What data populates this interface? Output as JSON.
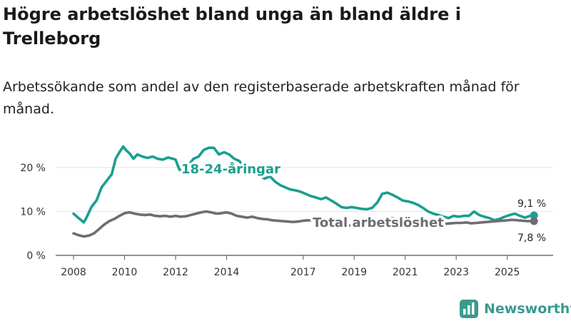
{
  "title": "Högre arbetslöshet bland unga än bland äldre i Trelleborg",
  "subtitle": "Arbetssökande som andel av den registerbaserade arbetskraften månad för månad.",
  "brand": {
    "name": "Newsworthy",
    "icon": "bar-chart-logo-icon"
  },
  "colors": {
    "youth": "#1a9e8f",
    "total": "#6f6c72",
    "axis": "#555555",
    "grid": "#e3e3e3",
    "brand": "#3a9a8f"
  },
  "chart_data": {
    "type": "line",
    "title": "Högre arbetslöshet bland unga än bland äldre i Trelleborg",
    "xlabel": "",
    "ylabel": "",
    "xlim": [
      2007.3,
      2026.8
    ],
    "ylim": [
      0,
      26
    ],
    "y_ticks": [
      {
        "value": 0,
        "label": "0 %"
      },
      {
        "value": 10,
        "label": "10 %"
      },
      {
        "value": 20,
        "label": "20 %"
      }
    ],
    "x_ticks": [
      {
        "value": 2008,
        "label": "2008"
      },
      {
        "value": 2010,
        "label": "2010"
      },
      {
        "value": 2012,
        "label": "2012"
      },
      {
        "value": 2014,
        "label": "2014"
      },
      {
        "value": 2017,
        "label": "2017"
      },
      {
        "value": 2019,
        "label": "2019"
      },
      {
        "value": 2021,
        "label": "2021"
      },
      {
        "value": 2023,
        "label": "2023"
      },
      {
        "value": 2025,
        "label": "2025"
      }
    ],
    "series": [
      {
        "name": "18-24-åringar",
        "label": "18-24-åringar",
        "color": "#1a9e8f",
        "end_label": "9,1 %",
        "end_value": 9.1,
        "x": [
          2008.0,
          2008.2,
          2008.4,
          2008.5,
          2008.7,
          2008.9,
          2009.1,
          2009.3,
          2009.5,
          2009.65,
          2009.8,
          2009.95,
          2010.05,
          2010.2,
          2010.35,
          2010.5,
          2010.7,
          2010.9,
          2011.1,
          2011.3,
          2011.5,
          2011.7,
          2011.9,
          2012.0,
          2012.15,
          2012.35,
          2012.5,
          2012.7,
          2012.9,
          2013.1,
          2013.3,
          2013.5,
          2013.7,
          2013.9,
          2014.1,
          2014.3,
          2014.5,
          2014.7,
          2014.9,
          2015.1,
          2015.3,
          2015.5,
          2015.7,
          2015.9,
          2016.1,
          2016.3,
          2016.5,
          2016.7,
          2016.9,
          2017.1,
          2017.3,
          2017.5,
          2017.7,
          2017.9,
          2018.1,
          2018.3,
          2018.5,
          2018.7,
          2018.9,
          2019.1,
          2019.3,
          2019.5,
          2019.7,
          2019.9,
          2020.1,
          2020.3,
          2020.5,
          2020.7,
          2020.9,
          2021.1,
          2021.3,
          2021.5,
          2021.7,
          2021.9,
          2022.1,
          2022.3,
          2022.5,
          2022.7,
          2022.9,
          2023.1,
          2023.3,
          2023.5,
          2023.7,
          2023.9,
          2024.1,
          2024.3,
          2024.5,
          2024.7,
          2024.9,
          2025.1,
          2025.3,
          2025.5,
          2025.7,
          2025.9,
          2026.05
        ],
        "values": [
          9.5,
          8.5,
          7.5,
          8.5,
          11.0,
          12.5,
          15.5,
          17.0,
          18.5,
          22.0,
          23.5,
          24.8,
          24.0,
          23.2,
          22.0,
          23.0,
          22.5,
          22.2,
          22.5,
          22.0,
          21.8,
          22.3,
          22.0,
          21.8,
          19.5,
          19.2,
          20.5,
          22.0,
          22.5,
          24.0,
          24.5,
          24.5,
          23.0,
          23.5,
          23.0,
          22.0,
          21.5,
          20.0,
          19.5,
          18.5,
          18.0,
          17.5,
          18.0,
          16.8,
          16.0,
          15.5,
          15.0,
          14.8,
          14.5,
          14.0,
          13.5,
          13.2,
          12.8,
          13.2,
          12.5,
          11.8,
          11.0,
          10.8,
          11.0,
          10.8,
          10.6,
          10.5,
          10.8,
          12.0,
          14.0,
          14.3,
          13.8,
          13.2,
          12.5,
          12.3,
          12.0,
          11.5,
          10.8,
          10.0,
          9.5,
          9.2,
          8.8,
          8.5,
          9.0,
          8.8,
          9.0,
          9.0,
          10.0,
          9.2,
          8.8,
          8.5,
          8.0,
          8.3,
          8.8,
          9.2,
          9.5,
          9.0,
          8.6,
          9.0,
          9.1
        ]
      },
      {
        "name": "Total arbetslöshet",
        "label": "Total arbetslöshet",
        "color": "#6f6c72",
        "end_label": "7,8 %",
        "end_value": 7.8,
        "x": [
          2008.0,
          2008.2,
          2008.4,
          2008.6,
          2008.8,
          2009.0,
          2009.2,
          2009.4,
          2009.6,
          2009.8,
          2010.0,
          2010.2,
          2010.4,
          2010.6,
          2010.8,
          2011.0,
          2011.2,
          2011.4,
          2011.6,
          2011.8,
          2012.0,
          2012.2,
          2012.4,
          2012.6,
          2012.8,
          2013.0,
          2013.2,
          2013.4,
          2013.6,
          2013.8,
          2014.0,
          2014.2,
          2014.4,
          2014.6,
          2014.8,
          2015.0,
          2015.2,
          2015.4,
          2015.6,
          2015.8,
          2016.0,
          2016.2,
          2016.4,
          2016.6,
          2016.8,
          2017.0,
          2017.2,
          2017.4,
          2017.6,
          2017.8,
          2018.0,
          2018.2,
          2018.4,
          2018.6,
          2018.8,
          2019.0,
          2019.2,
          2019.4,
          2019.6,
          2019.8,
          2020.0,
          2020.2,
          2020.4,
          2020.6,
          2020.8,
          2021.0,
          2021.2,
          2021.4,
          2021.6,
          2021.8,
          2022.0,
          2022.2,
          2022.4,
          2022.6,
          2022.8,
          2023.0,
          2023.2,
          2023.4,
          2023.6,
          2023.8,
          2024.0,
          2024.2,
          2024.4,
          2024.6,
          2024.8,
          2025.0,
          2025.2,
          2025.4,
          2025.6,
          2025.8,
          2026.05
        ],
        "values": [
          5.0,
          4.6,
          4.3,
          4.5,
          5.0,
          6.0,
          7.0,
          7.8,
          8.3,
          9.0,
          9.6,
          9.8,
          9.5,
          9.3,
          9.2,
          9.3,
          9.0,
          8.9,
          9.0,
          8.8,
          9.0,
          8.8,
          8.9,
          9.2,
          9.5,
          9.8,
          10.0,
          9.8,
          9.5,
          9.6,
          9.8,
          9.5,
          9.0,
          8.8,
          8.6,
          8.8,
          8.5,
          8.3,
          8.2,
          8.0,
          7.9,
          7.8,
          7.7,
          7.6,
          7.7,
          7.9,
          8.0,
          8.0,
          7.8,
          7.6,
          7.4,
          7.2,
          7.0,
          6.9,
          6.8,
          6.9,
          7.0,
          7.2,
          7.5,
          7.8,
          8.2,
          8.3,
          8.5,
          8.4,
          8.2,
          8.0,
          7.9,
          7.8,
          7.7,
          7.5,
          7.4,
          7.3,
          7.2,
          7.2,
          7.3,
          7.4,
          7.4,
          7.5,
          7.3,
          7.4,
          7.5,
          7.6,
          7.7,
          7.8,
          7.9,
          8.0,
          8.1,
          8.0,
          7.9,
          7.8,
          7.8
        ]
      }
    ]
  }
}
